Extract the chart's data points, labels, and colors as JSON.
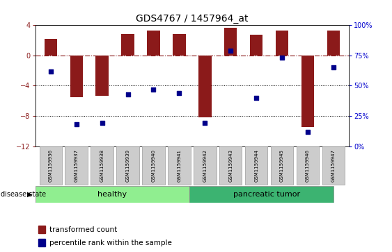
{
  "title": "GDS4767 / 1457964_at",
  "samples": [
    "GSM1159936",
    "GSM1159937",
    "GSM1159938",
    "GSM1159939",
    "GSM1159940",
    "GSM1159941",
    "GSM1159942",
    "GSM1159943",
    "GSM1159944",
    "GSM1159945",
    "GSM1159946",
    "GSM1159947"
  ],
  "bar_values": [
    2.2,
    -5.5,
    -5.3,
    2.8,
    3.3,
    2.8,
    -8.2,
    3.7,
    2.7,
    3.3,
    -9.5,
    3.3
  ],
  "percentile_values": [
    62,
    18,
    19,
    43,
    47,
    44,
    19,
    79,
    40,
    73,
    12,
    65
  ],
  "bar_color": "#8B1A1A",
  "dot_color": "#00008B",
  "ylim_left": [
    -12,
    4
  ],
  "ylim_right": [
    0,
    100
  ],
  "yticks_left": [
    4,
    0,
    -4,
    -8,
    -12
  ],
  "yticks_right": [
    100,
    75,
    50,
    25,
    0
  ],
  "hline_y": 0,
  "dotted_hlines": [
    -4,
    -8
  ],
  "healthy_label": "healthy",
  "tumor_label": "pancreatic tumor",
  "disease_state_label": "disease state",
  "legend_bar_label": "transformed count",
  "legend_dot_label": "percentile rank within the sample",
  "healthy_color": "#90EE90",
  "tumor_color": "#3CB371",
  "bar_color_left_axis": "#8B1A1A",
  "dot_color_right_axis": "#0000CD",
  "bar_width": 0.5
}
